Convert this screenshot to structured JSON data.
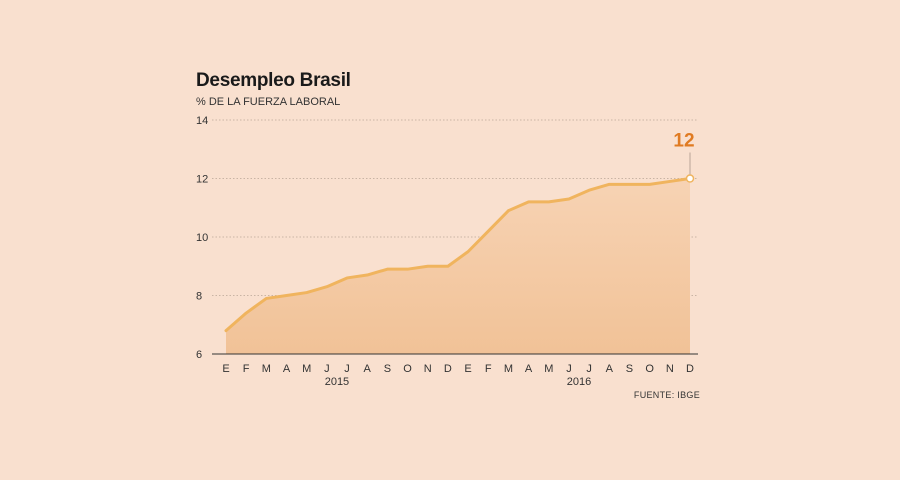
{
  "colors": {
    "background": "#f9e0cf",
    "line": "#f0b45e",
    "area_top": "#f7d3b4",
    "area_bottom": "#f1c297",
    "highlight": "#e07b22"
  },
  "chart_data": {
    "type": "area",
    "title": "Desempleo Brasil",
    "subtitle": "% DE LA FUERZA LABORAL",
    "xlabel": "",
    "ylabel": "",
    "ylim": [
      6,
      14
    ],
    "yticks": [
      6,
      8,
      10,
      12,
      14
    ],
    "grid": true,
    "categories": [
      "E",
      "F",
      "M",
      "A",
      "M",
      "J",
      "J",
      "A",
      "S",
      "O",
      "N",
      "D",
      "E",
      "F",
      "M",
      "A",
      "M",
      "J",
      "J",
      "A",
      "S",
      "O",
      "N",
      "D"
    ],
    "years": [
      {
        "label": "2015",
        "center_index": 5.5
      },
      {
        "label": "2016",
        "center_index": 17.5
      }
    ],
    "series": [
      {
        "values": [
          6.8,
          7.4,
          7.9,
          8.0,
          8.1,
          8.3,
          8.6,
          8.7,
          8.9,
          8.9,
          9.0,
          9.0,
          9.5,
          10.2,
          10.9,
          11.2,
          11.2,
          11.3,
          11.6,
          11.8,
          11.8,
          11.8,
          11.9,
          12.0
        ]
      }
    ],
    "end_label": "12",
    "source": "FUENTE: IBGE"
  }
}
